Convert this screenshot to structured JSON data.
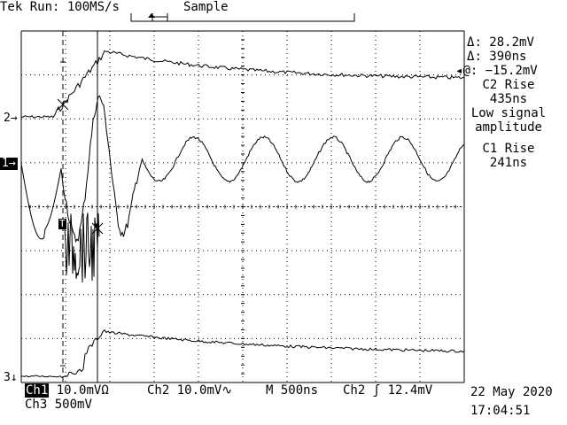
{
  "header": {
    "brand": "Tek",
    "run_status": "Run: 100MS/s",
    "acq_mode": "Sample"
  },
  "measurements": {
    "delta_v": "28.2mV",
    "delta_t": "390ns",
    "at_value": "−15.2mV",
    "c2_rise_label": "C2 Rise",
    "c2_rise_value": "435ns",
    "warning_line1": "Low signal",
    "warning_line2": "amplitude",
    "c1_rise_label": "C1 Rise",
    "c1_rise_value": "241ns"
  },
  "channel_markers": {
    "ch2": "2",
    "ch1": "1",
    "ch3": "3",
    "trigger": "T"
  },
  "bottom_bar": {
    "ch1_label": "Ch1",
    "ch1_scale": "10.0mV",
    "ch1_coupling": "Ω",
    "ch2_label": "Ch2",
    "ch2_scale": "10.0mV",
    "ch2_coupling": "∿",
    "timebase_label": "M",
    "timebase_value": "500ns",
    "trigger_source": "Ch2",
    "trigger_level": "12.4mV",
    "ch3_label": "Ch3",
    "ch3_scale": "500mV",
    "date": "22 May 2020",
    "time": "17:04:51"
  },
  "icons": {
    "trigger_slope": "rising-edge-icon",
    "cursor_delta": "delta-icon",
    "cursor_at": "at-icon"
  }
}
